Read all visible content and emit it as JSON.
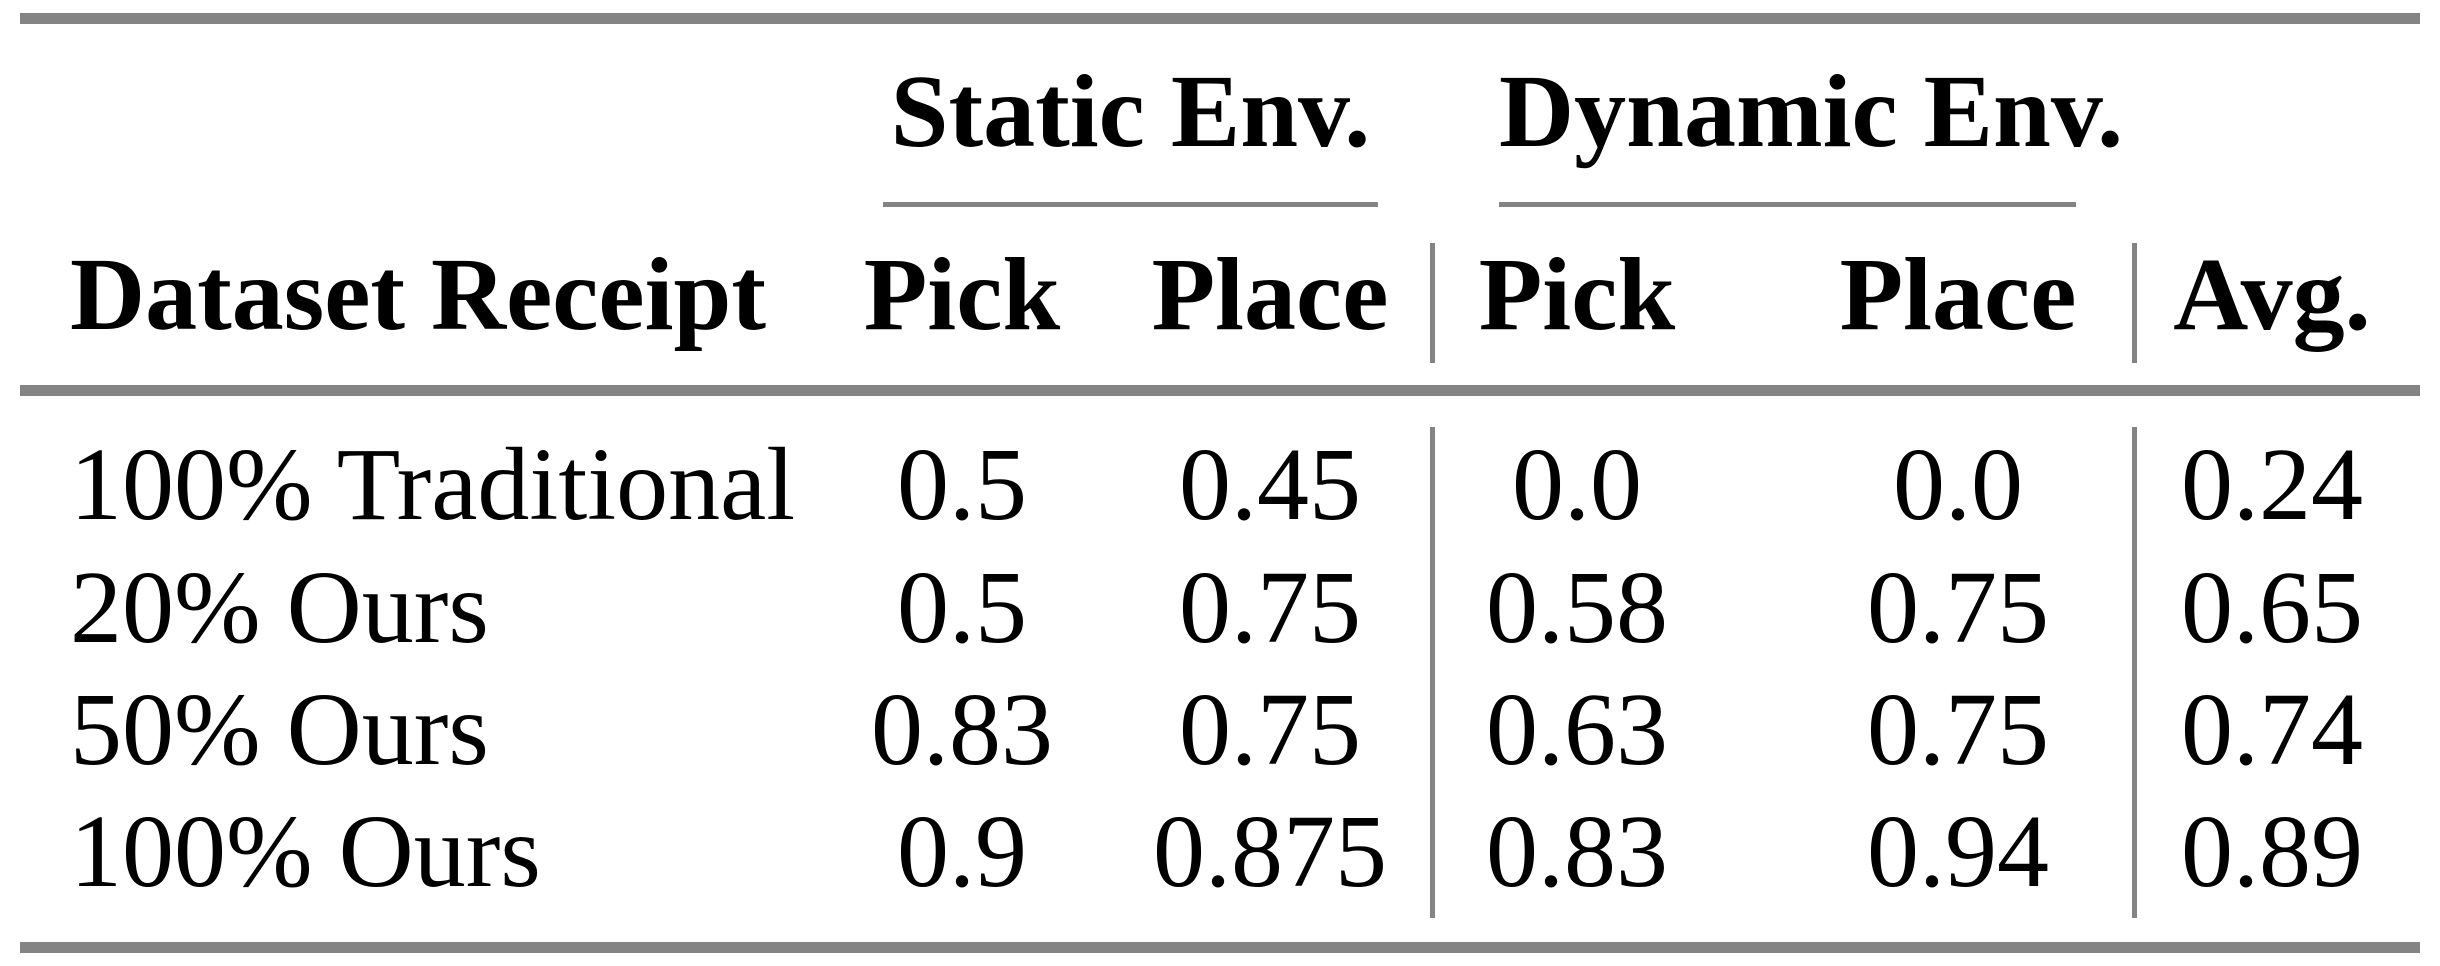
{
  "table": {
    "col_groups": [
      {
        "label": "Static Env."
      },
      {
        "label": "Dynamic Env."
      }
    ],
    "columns": [
      "Dataset Receipt",
      "Pick",
      "Place",
      "Pick",
      "Place",
      "Avg."
    ],
    "rows": [
      [
        "100% Traditional",
        "0.5",
        "0.45",
        "0.0",
        "0.0",
        "0.24"
      ],
      [
        "20% Ours",
        "0.5",
        "0.75",
        "0.58",
        "0.75",
        "0.65"
      ],
      [
        "50% Ours",
        "0.83",
        "0.75",
        "0.63",
        "0.75",
        "0.74"
      ],
      [
        "100% Ours",
        "0.9",
        "0.875",
        "0.83",
        "0.94",
        "0.89"
      ]
    ]
  },
  "chart_data": {
    "type": "table",
    "title": "",
    "column_groups": [
      {
        "label": "Static Env.",
        "columns": [
          "Pick",
          "Place"
        ]
      },
      {
        "label": "Dynamic Env.",
        "columns": [
          "Pick",
          "Place"
        ]
      }
    ],
    "columns": [
      "Dataset Receipt",
      "Static Pick",
      "Static Place",
      "Dynamic Pick",
      "Dynamic Place",
      "Avg."
    ],
    "rows": [
      {
        "dataset_receipt": "100% Traditional",
        "static_pick": 0.5,
        "static_place": 0.45,
        "dynamic_pick": 0.0,
        "dynamic_place": 0.0,
        "avg": 0.24
      },
      {
        "dataset_receipt": "20% Ours",
        "static_pick": 0.5,
        "static_place": 0.75,
        "dynamic_pick": 0.58,
        "dynamic_place": 0.75,
        "avg": 0.65
      },
      {
        "dataset_receipt": "50% Ours",
        "static_pick": 0.83,
        "static_place": 0.75,
        "dynamic_pick": 0.63,
        "dynamic_place": 0.75,
        "avg": 0.74
      },
      {
        "dataset_receipt": "100% Ours",
        "static_pick": 0.9,
        "static_place": 0.875,
        "dynamic_pick": 0.83,
        "dynamic_place": 0.94,
        "avg": 0.89
      }
    ]
  },
  "colors": {
    "rule_gray": "#848484",
    "text": "#000000",
    "background": "#ffffff"
  }
}
